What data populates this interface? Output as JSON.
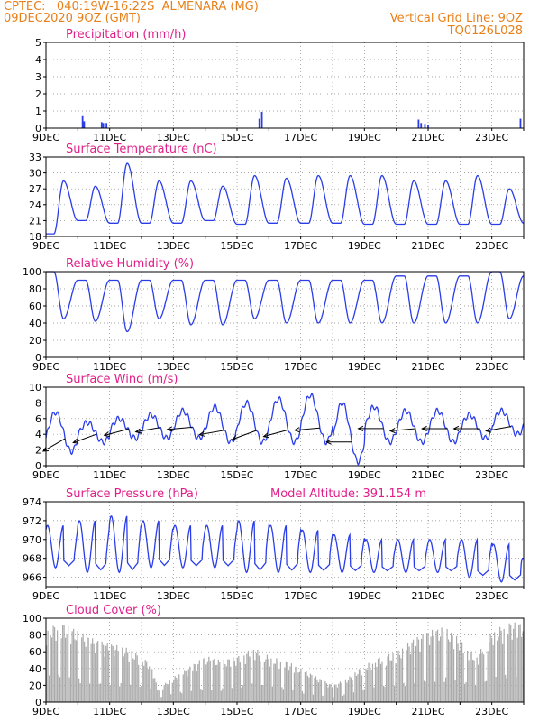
{
  "header": {
    "line1_left": "CPTEC:   040:19W-16:22S  ALMENARA (MG)",
    "line2_left": "09DEC2020 9OZ (GMT)",
    "line1_right": "Vertical Grid Line: 9OZ",
    "line2_right": "TQ0126L028",
    "color": "#e8801a"
  },
  "colors": {
    "title": "#e0208a",
    "series": "#2a3de8",
    "cloud": "#aaaaaa",
    "arrow": "#000000",
    "frame": "#000000"
  },
  "x_tick_labels": [
    "9DEC",
    "11DEC",
    "13DEC",
    "15DEC",
    "17DEC",
    "19DEC",
    "21DEC",
    "23DEC"
  ],
  "chart_data": [
    {
      "type": "bar",
      "title": "Precipitation (mm/h)",
      "ylim": [
        0,
        5
      ],
      "yticks": [
        0,
        1,
        2,
        3,
        4,
        5
      ],
      "x_range_days": [
        0,
        15
      ],
      "bars": [
        [
          1.15,
          0.75
        ],
        [
          1.2,
          0.4
        ],
        [
          1.75,
          0.35
        ],
        [
          1.8,
          0.3
        ],
        [
          1.9,
          0.3
        ],
        [
          6.7,
          0.55
        ],
        [
          6.78,
          0.95
        ],
        [
          11.7,
          0.5
        ],
        [
          11.78,
          0.3
        ],
        [
          11.9,
          0.25
        ],
        [
          12.0,
          0.2
        ],
        [
          14.9,
          0.55
        ]
      ]
    },
    {
      "type": "line",
      "title": "Surface Temperature (nC)",
      "ylim": [
        18,
        33
      ],
      "yticks": [
        18,
        21,
        24,
        27,
        30,
        33
      ],
      "x_range_days": [
        0,
        15
      ],
      "minima": [
        18.5,
        21.0,
        20.5,
        20.5,
        20.5,
        21.0,
        20.3,
        20.5,
        20.5,
        20.5,
        20.3,
        20.3,
        20.3,
        20.3,
        20.3
      ],
      "maxima": [
        28.5,
        27.5,
        31.8,
        28.5,
        28.5,
        27.5,
        29.5,
        29.0,
        29.5,
        29.5,
        29.5,
        28.5,
        28.5,
        29.5,
        27.0
      ],
      "final": 20.5
    },
    {
      "type": "line",
      "title": "Relative Humidity (%)",
      "ylim": [
        0,
        100
      ],
      "yticks": [
        0,
        20,
        40,
        60,
        80,
        100
      ],
      "x_range_days": [
        0,
        15
      ],
      "maxima": [
        100,
        90,
        90,
        90,
        90,
        90,
        90,
        90,
        90,
        90,
        90,
        95,
        95,
        95,
        100
      ],
      "minima": [
        45,
        42,
        30,
        45,
        38,
        38,
        45,
        40,
        40,
        40,
        40,
        40,
        40,
        40,
        45
      ],
      "final": 95
    },
    {
      "type": "line",
      "title": "Surface Wind (m/s)",
      "ylim": [
        0,
        10
      ],
      "yticks": [
        0,
        2,
        4,
        6,
        8,
        10
      ],
      "x_range_days": [
        0,
        15
      ],
      "speed_max": [
        6.8,
        5.5,
        6.0,
        6.5,
        7.0,
        7.5,
        8.0,
        8.5,
        9.0,
        8.0,
        7.5,
        7.0,
        7.0,
        6.5,
        7.0
      ],
      "speed_min": [
        1.8,
        3.0,
        3.5,
        3.5,
        3.5,
        3.0,
        3.0,
        3.0,
        3.0,
        0.5,
        3.0,
        3.0,
        3.0,
        3.5,
        4.0
      ],
      "arrow_direction_deg": [
        210,
        200,
        195,
        190,
        185,
        190,
        200,
        195,
        185,
        180,
        180,
        185,
        180,
        180,
        190
      ]
    },
    {
      "type": "line",
      "title": "Surface Pressure (hPa)",
      "annotation": "Model Altitude: 391.154 m",
      "ylim": [
        965,
        974
      ],
      "yticks": [
        966,
        968,
        970,
        972,
        974
      ],
      "x_range_days": [
        0,
        15
      ],
      "maxima": [
        971.5,
        972.0,
        972.5,
        972.0,
        971.5,
        971.5,
        972.0,
        971.5,
        971.0,
        970.5,
        970.0,
        970.0,
        970.0,
        970.0,
        969.5
      ],
      "minima": [
        967.0,
        966.5,
        966.5,
        967.0,
        967.0,
        967.0,
        966.5,
        966.5,
        966.5,
        966.5,
        966.5,
        966.5,
        966.5,
        966.0,
        965.5
      ],
      "final": 968.0
    },
    {
      "type": "area",
      "title": "Cloud Cover (%)",
      "ylim": [
        0,
        100
      ],
      "yticks": [
        0,
        20,
        40,
        60,
        80,
        100
      ],
      "x_range_days": [
        0,
        15
      ],
      "envelope": [
        [
          0.0,
          90
        ],
        [
          0.5,
          95
        ],
        [
          1.0,
          85
        ],
        [
          1.5,
          75
        ],
        [
          2.0,
          70
        ],
        [
          2.5,
          65
        ],
        [
          3.0,
          55
        ],
        [
          3.3,
          45
        ],
        [
          3.5,
          15
        ],
        [
          3.8,
          25
        ],
        [
          4.2,
          35
        ],
        [
          4.6,
          45
        ],
        [
          5.0,
          55
        ],
        [
          5.5,
          50
        ],
        [
          6.0,
          55
        ],
        [
          6.5,
          65
        ],
        [
          7.0,
          55
        ],
        [
          7.5,
          50
        ],
        [
          8.0,
          40
        ],
        [
          8.5,
          30
        ],
        [
          9.0,
          20
        ],
        [
          9.5,
          30
        ],
        [
          10.0,
          45
        ],
        [
          10.5,
          55
        ],
        [
          11.0,
          60
        ],
        [
          11.5,
          75
        ],
        [
          12.0,
          85
        ],
        [
          12.5,
          90
        ],
        [
          13.0,
          75
        ],
        [
          13.5,
          55
        ],
        [
          14.0,
          85
        ],
        [
          14.5,
          95
        ],
        [
          15.0,
          95
        ]
      ]
    }
  ]
}
